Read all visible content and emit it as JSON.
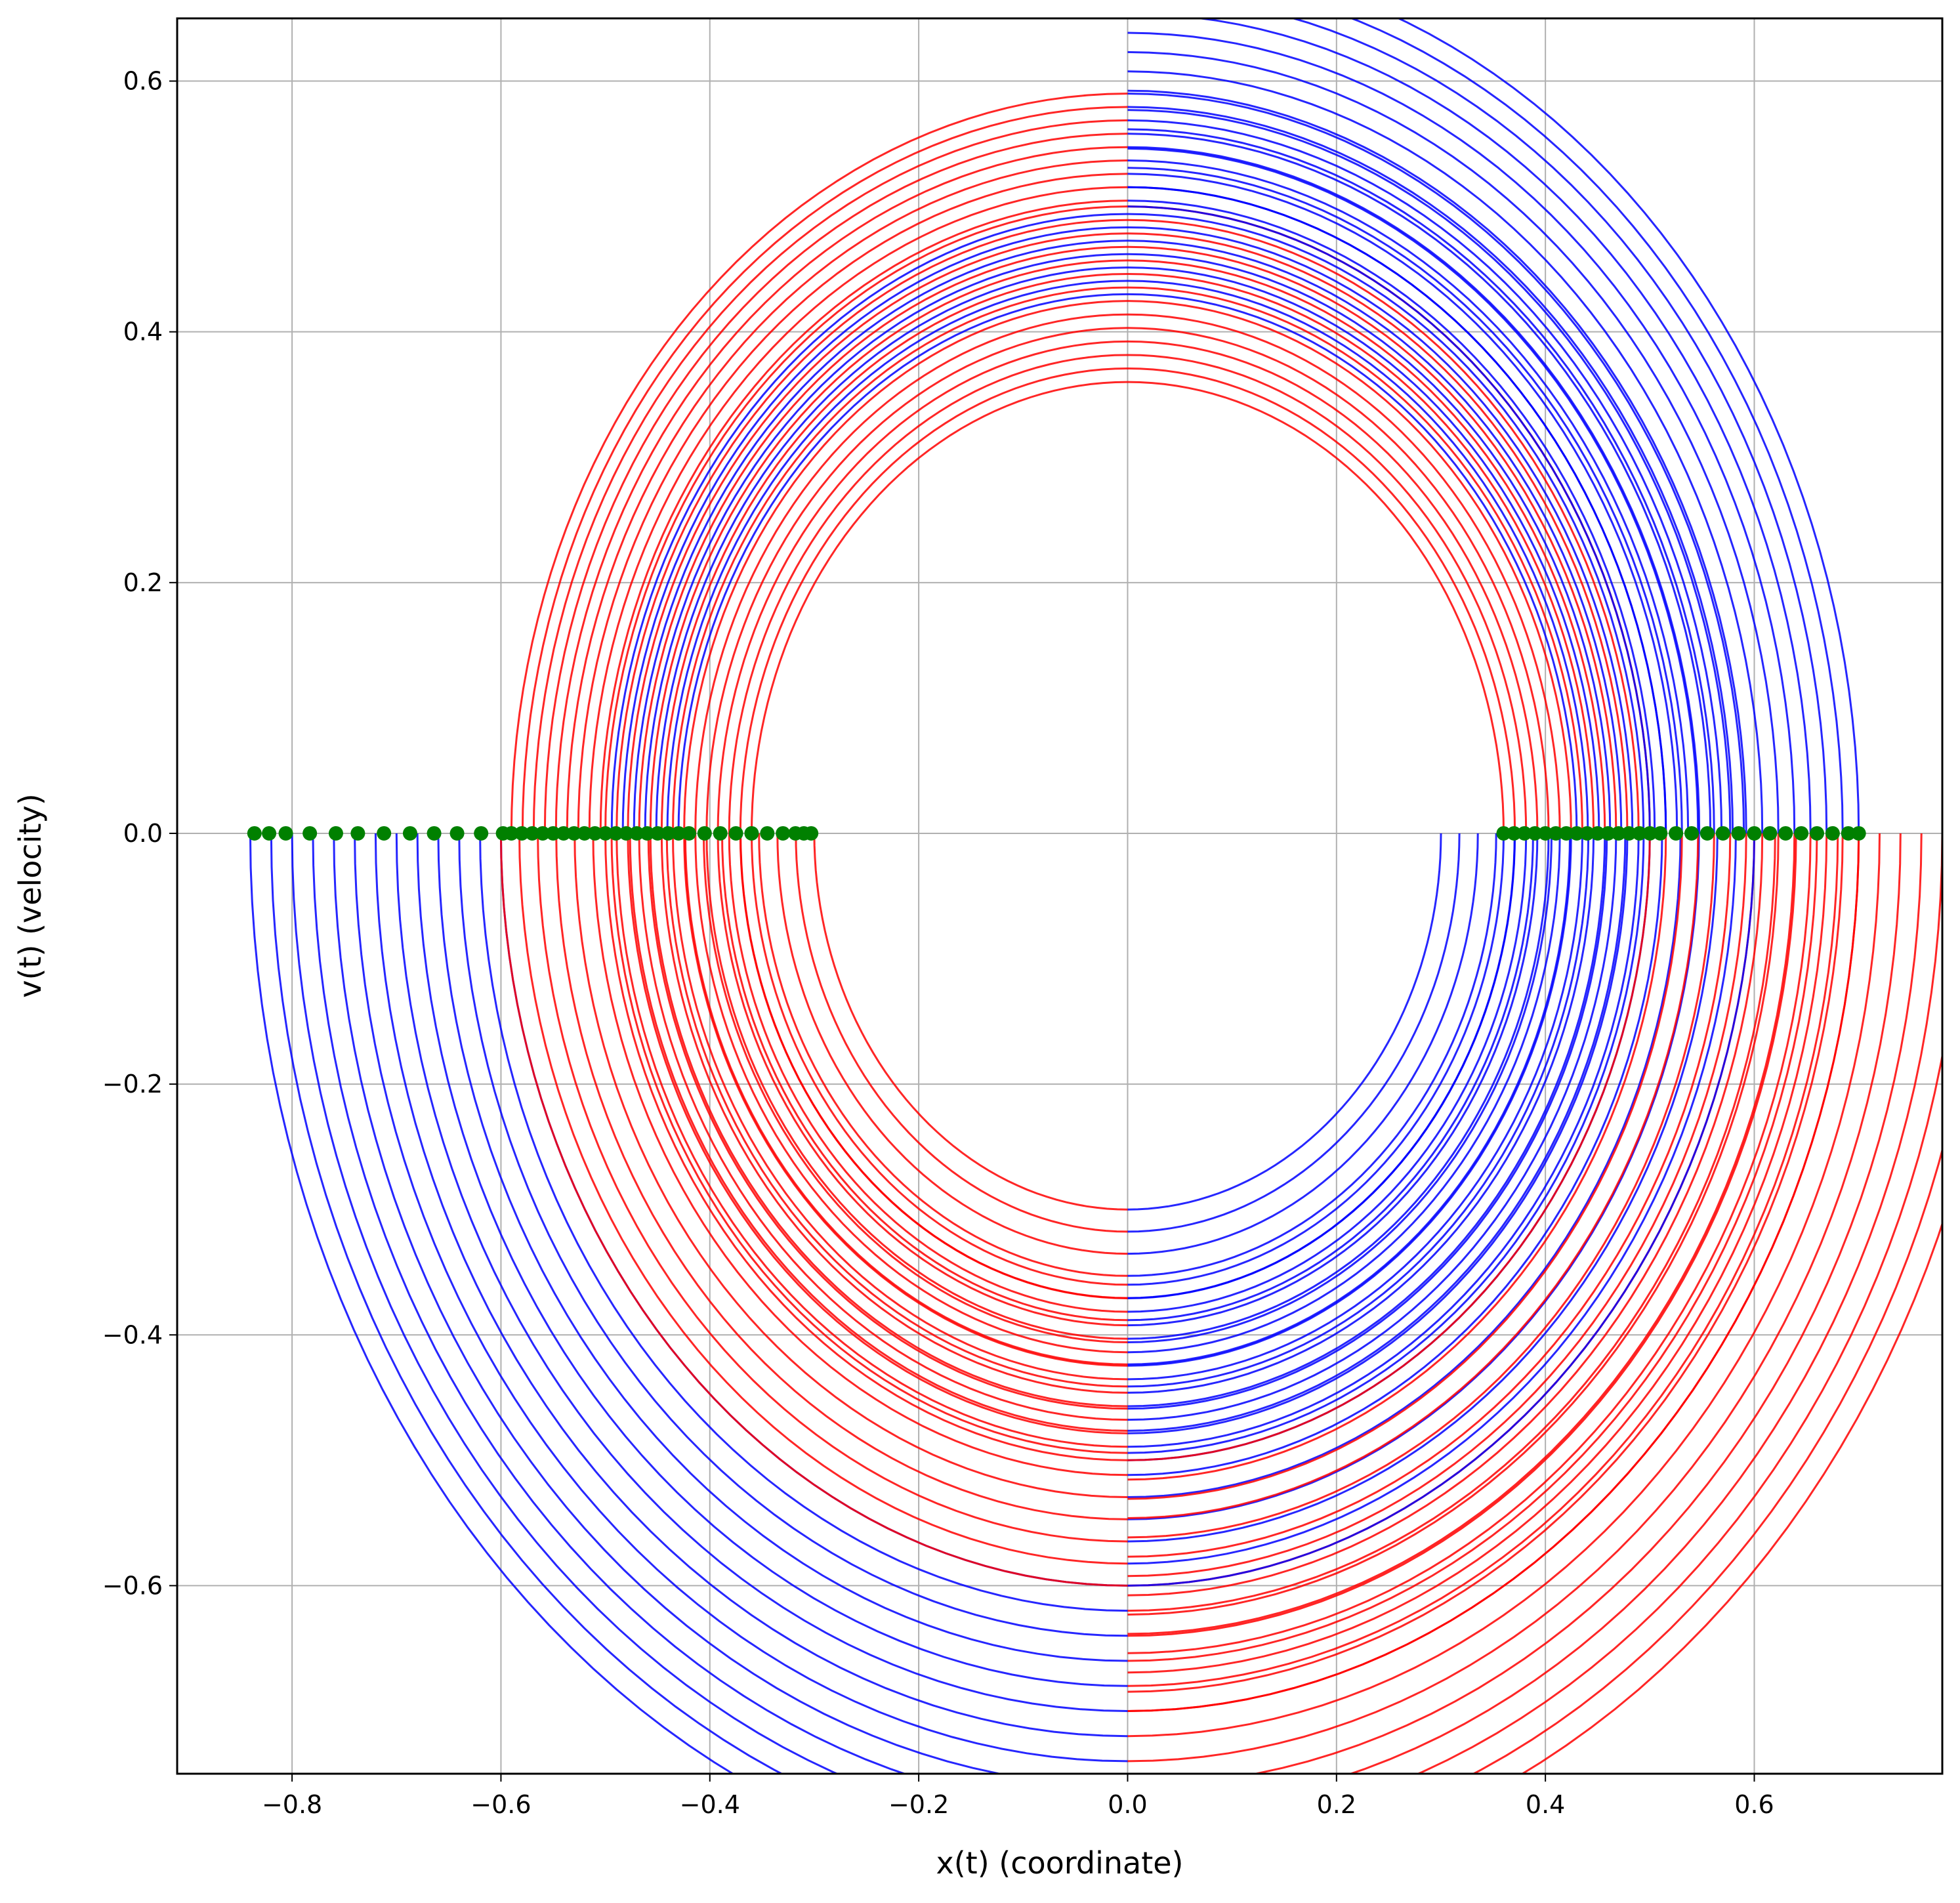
{
  "chart_data": {
    "type": "line",
    "title": "",
    "xlabel": "x(t) (coordinate)",
    "ylabel": "v(t) (velocity)",
    "xlim": [
      -0.91,
      0.78
    ],
    "ylim": [
      -0.75,
      0.65
    ],
    "xticks": [
      -0.8,
      -0.6,
      -0.4,
      -0.2,
      0.0,
      0.2,
      0.4,
      0.6
    ],
    "yticks": [
      -0.6,
      -0.4,
      -0.2,
      0.0,
      0.2,
      0.4,
      0.6
    ],
    "xtick_labels": [
      "−0.8",
      "−0.6",
      "−0.4",
      "−0.2",
      "0.0",
      "0.2",
      "0.4",
      "0.6"
    ],
    "ytick_labels": [
      "−0.6",
      "−0.4",
      "−0.2",
      "0.0",
      "0.2",
      "0.4",
      "0.6"
    ],
    "grid": true,
    "legend": "none",
    "colors": {
      "motion_with_positive_velocity_phase": "#0000ff",
      "motion_with_negative_velocity_phase": "#ff0000",
      "initial_points": "#008000",
      "grid": "#b0b0b0"
    },
    "families": [
      {
        "description": "left-start upper arcs (x0 in [-0.6,-0.43]), centered at x=0",
        "center_x": 0.0,
        "x0_range": [
          -0.59,
          -0.43
        ],
        "count": 16,
        "segments": [
          {
            "from_deg": 180,
            "to_deg": 90,
            "color": "#ff0000",
            "inner_fraction_blue": 0.55
          },
          {
            "from_deg": 90,
            "to_deg": 0,
            "color": "#0000ff"
          }
        ]
      },
      {
        "description": "left-start lower arcs (x0 in [-0.84,-0.6]), centered at x=0",
        "center_x": 0.0,
        "x0_range": [
          -0.84,
          -0.6
        ],
        "count": 13,
        "segments": [
          {
            "from_deg": 180,
            "to_deg": 270,
            "color": "#0000ff"
          },
          {
            "from_deg": 270,
            "to_deg": 360,
            "color": "#ff0000"
          }
        ]
      },
      {
        "description": "left-start inner lower arcs (x0 in [-0.6,-0.3]), centered at x=0",
        "center_x": 0.0,
        "x0_range": [
          -0.6,
          -0.3
        ],
        "count": 18,
        "segments": [
          {
            "from_deg": 180,
            "to_deg": 270,
            "color": "#ff0000"
          },
          {
            "from_deg": 270,
            "to_deg": 360,
            "color": "#0000ff"
          }
        ]
      },
      {
        "description": "right-start inner arcs (x0 in [0.36,0.5]), centered at x=0",
        "center_x": 0.0,
        "x0_range": [
          0.36,
          0.5
        ],
        "count": 14,
        "segments": [
          {
            "from_deg": 0,
            "to_deg": 90,
            "color": "#ff0000"
          },
          {
            "from_deg": 90,
            "to_deg": 180,
            "color": "#ff0000"
          },
          {
            "from_deg": 180,
            "to_deg": 270,
            "color": "#ff0000"
          },
          {
            "from_deg": 270,
            "to_deg": 360,
            "color": "#0000ff"
          }
        ]
      },
      {
        "description": "right-start outer arcs (x0 in [0.5,0.7]), centered at x=0",
        "center_x": 0.0,
        "x0_range": [
          0.5,
          0.7
        ],
        "count": 14,
        "segments": [
          {
            "from_deg": 0,
            "to_deg": 90,
            "color": "#0000ff"
          },
          {
            "from_deg": 270,
            "to_deg": 360,
            "color": "#ff0000"
          }
        ]
      }
    ],
    "initial_points": {
      "y": 0.0,
      "x": [
        -0.836,
        -0.822,
        -0.806,
        -0.783,
        -0.758,
        -0.737,
        -0.712,
        -0.687,
        -0.664,
        -0.642,
        -0.619,
        -0.598,
        -0.59,
        -0.58,
        -0.57,
        -0.56,
        -0.55,
        -0.54,
        -0.53,
        -0.52,
        -0.51,
        -0.5,
        -0.49,
        -0.48,
        -0.47,
        -0.46,
        -0.45,
        -0.44,
        -0.43,
        -0.42,
        -0.405,
        -0.39,
        -0.375,
        -0.36,
        -0.345,
        -0.33,
        -0.318,
        -0.31,
        -0.303,
        0.36,
        0.37,
        0.38,
        0.39,
        0.4,
        0.41,
        0.42,
        0.43,
        0.44,
        0.45,
        0.46,
        0.47,
        0.48,
        0.49,
        0.5,
        0.51,
        0.525,
        0.54,
        0.555,
        0.57,
        0.585,
        0.6,
        0.615,
        0.63,
        0.645,
        0.66,
        0.675,
        0.69,
        0.7
      ]
    }
  }
}
